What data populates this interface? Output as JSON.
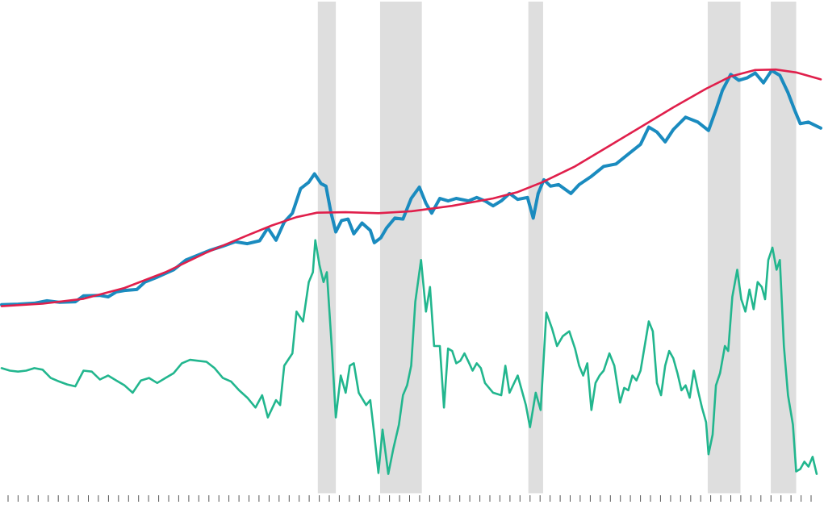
{
  "chart_data": {
    "type": "line",
    "title": "",
    "xlabel": "",
    "ylabel": "",
    "xlim": [
      0,
      100
    ],
    "ylim": [
      0,
      100
    ],
    "grid": false,
    "legend": "none",
    "x_tick_count": 81,
    "shaded_bands": [
      {
        "start": 38.6,
        "end": 40.8
      },
      {
        "start": 46.2,
        "end": 51.3
      },
      {
        "start": 64.3,
        "end": 66.1
      },
      {
        "start": 86.2,
        "end": 90.2
      },
      {
        "start": 93.9,
        "end": 97.0
      }
    ],
    "colors": {
      "band": "#dedede",
      "series_0": "#1a8bbf",
      "series_1": "#e01f4b",
      "series_2": "#22b68e",
      "axis": "#555555"
    },
    "series": [
      {
        "points": [
          [
            0,
            38.4
          ],
          [
            2,
            38.5
          ],
          [
            4,
            38.7
          ],
          [
            5.5,
            39.2
          ],
          [
            7,
            38.9
          ],
          [
            9,
            39.0
          ],
          [
            10,
            40.2
          ],
          [
            12,
            40.3
          ],
          [
            13,
            40.0
          ],
          [
            14,
            41.0
          ],
          [
            15,
            41.3
          ],
          [
            16.5,
            41.5
          ],
          [
            17.5,
            43.0
          ],
          [
            19,
            44.0
          ],
          [
            21,
            45.5
          ],
          [
            22.5,
            47.5
          ],
          [
            24,
            48.5
          ],
          [
            25.5,
            49.5
          ],
          [
            27,
            50.3
          ],
          [
            28.5,
            51.2
          ],
          [
            30,
            50.8
          ],
          [
            31.5,
            51.4
          ],
          [
            32.5,
            54.0
          ],
          [
            33.5,
            51.5
          ],
          [
            34.5,
            55.2
          ],
          [
            35.5,
            57.0
          ],
          [
            36.5,
            62.0
          ],
          [
            37.5,
            63.3
          ],
          [
            38.2,
            65.0
          ],
          [
            39,
            63.0
          ],
          [
            39.6,
            62.5
          ],
          [
            40.2,
            57.2
          ],
          [
            40.8,
            53.2
          ],
          [
            41.5,
            55.5
          ],
          [
            42.3,
            55.8
          ],
          [
            43,
            52.8
          ],
          [
            44,
            55.0
          ],
          [
            45,
            53.5
          ],
          [
            45.5,
            51.0
          ],
          [
            46.3,
            52.0
          ],
          [
            47,
            54.0
          ],
          [
            48,
            56.0
          ],
          [
            49,
            55.8
          ],
          [
            50,
            60.0
          ],
          [
            51,
            62.3
          ],
          [
            51.8,
            59.0
          ],
          [
            52.5,
            57.0
          ],
          [
            53.5,
            60.0
          ],
          [
            54.5,
            59.5
          ],
          [
            55.5,
            60.0
          ],
          [
            57,
            59.5
          ],
          [
            58,
            60.2
          ],
          [
            59,
            59.5
          ],
          [
            60,
            58.5
          ],
          [
            61,
            59.5
          ],
          [
            62,
            61.0
          ],
          [
            63,
            59.8
          ],
          [
            64.2,
            60.2
          ],
          [
            64.9,
            56.0
          ],
          [
            65.5,
            61.0
          ],
          [
            66.2,
            63.8
          ],
          [
            67,
            62.5
          ],
          [
            68,
            62.8
          ],
          [
            69.5,
            61.0
          ],
          [
            70.5,
            62.8
          ],
          [
            72,
            64.5
          ],
          [
            73.5,
            66.5
          ],
          [
            75,
            67.0
          ],
          [
            76.5,
            69.0
          ],
          [
            78,
            71.0
          ],
          [
            79,
            74.5
          ],
          [
            80,
            73.5
          ],
          [
            81,
            71.5
          ],
          [
            82,
            74.0
          ],
          [
            83.5,
            76.5
          ],
          [
            85,
            75.5
          ],
          [
            86.3,
            73.8
          ],
          [
            87.2,
            78.0
          ],
          [
            88,
            82.0
          ],
          [
            89,
            85.2
          ],
          [
            90,
            84.0
          ],
          [
            91,
            84.5
          ],
          [
            92,
            85.5
          ],
          [
            93,
            83.5
          ],
          [
            94,
            86.0
          ],
          [
            95,
            85.0
          ],
          [
            96,
            81.5
          ],
          [
            96.8,
            78.0
          ],
          [
            97.5,
            75.2
          ],
          [
            98.5,
            75.5
          ],
          [
            100,
            74.3
          ]
        ]
      },
      {
        "points": [
          [
            0,
            38.1
          ],
          [
            5,
            38.6
          ],
          [
            10,
            39.6
          ],
          [
            15,
            41.8
          ],
          [
            20,
            45.0
          ],
          [
            25,
            49.0
          ],
          [
            30,
            52.5
          ],
          [
            33,
            54.5
          ],
          [
            36,
            56.2
          ],
          [
            38.5,
            57.1
          ],
          [
            42,
            57.2
          ],
          [
            46,
            57.0
          ],
          [
            50,
            57.4
          ],
          [
            55,
            58.5
          ],
          [
            60,
            60.0
          ],
          [
            63,
            61.3
          ],
          [
            66,
            63.3
          ],
          [
            70,
            66.5
          ],
          [
            74,
            70.5
          ],
          [
            78,
            74.5
          ],
          [
            82,
            78.5
          ],
          [
            86,
            82.3
          ],
          [
            89,
            84.8
          ],
          [
            92,
            86.1
          ],
          [
            94.5,
            86.2
          ],
          [
            97,
            85.6
          ],
          [
            100,
            84.2
          ]
        ]
      },
      {
        "points": [
          [
            0,
            25.5
          ],
          [
            1,
            25.0
          ],
          [
            2,
            24.8
          ],
          [
            3,
            25.0
          ],
          [
            4,
            25.5
          ],
          [
            5,
            25.2
          ],
          [
            6,
            23.5
          ],
          [
            7,
            22.8
          ],
          [
            8,
            22.2
          ],
          [
            9,
            21.8
          ],
          [
            10,
            25.0
          ],
          [
            11,
            24.8
          ],
          [
            12,
            23.2
          ],
          [
            13,
            24.0
          ],
          [
            14,
            23.0
          ],
          [
            15,
            22.0
          ],
          [
            16,
            20.5
          ],
          [
            17,
            23.0
          ],
          [
            18,
            23.5
          ],
          [
            19,
            22.5
          ],
          [
            20,
            23.5
          ],
          [
            21,
            24.5
          ],
          [
            22,
            26.5
          ],
          [
            23,
            27.2
          ],
          [
            24,
            27.0
          ],
          [
            25,
            26.8
          ],
          [
            26,
            25.5
          ],
          [
            27,
            23.5
          ],
          [
            28,
            22.8
          ],
          [
            29,
            21.0
          ],
          [
            30,
            19.5
          ],
          [
            31,
            17.5
          ],
          [
            31.8,
            20.0
          ],
          [
            32.5,
            15.5
          ],
          [
            33.5,
            19.0
          ],
          [
            34,
            18.0
          ],
          [
            34.5,
            26.0
          ],
          [
            35.5,
            28.5
          ],
          [
            36,
            37.0
          ],
          [
            36.8,
            35.0
          ],
          [
            37.5,
            43.0
          ],
          [
            38,
            45.0
          ],
          [
            38.3,
            51.5
          ],
          [
            38.8,
            46.5
          ],
          [
            39.3,
            43.0
          ],
          [
            39.7,
            45.0
          ],
          [
            40.3,
            30.0
          ],
          [
            40.8,
            15.5
          ],
          [
            41.4,
            24.0
          ],
          [
            42,
            20.5
          ],
          [
            42.5,
            26.0
          ],
          [
            43,
            26.5
          ],
          [
            43.6,
            20.5
          ],
          [
            44.5,
            18.0
          ],
          [
            45,
            19.0
          ],
          [
            45.5,
            12.0
          ],
          [
            46,
            4.2
          ],
          [
            46.5,
            13.0
          ],
          [
            47.2,
            4.0
          ],
          [
            47.8,
            9.0
          ],
          [
            48.5,
            14.0
          ],
          [
            49,
            20.0
          ],
          [
            49.5,
            22.0
          ],
          [
            50,
            26.0
          ],
          [
            50.5,
            39.0
          ],
          [
            51.2,
            47.5
          ],
          [
            51.8,
            37.0
          ],
          [
            52.3,
            42.0
          ],
          [
            52.8,
            30.0
          ],
          [
            53.5,
            30.0
          ],
          [
            54,
            17.5
          ],
          [
            54.5,
            29.5
          ],
          [
            55,
            29.0
          ],
          [
            55.5,
            26.5
          ],
          [
            56,
            27.0
          ],
          [
            56.5,
            28.5
          ],
          [
            57,
            26.8
          ],
          [
            57.5,
            25.0
          ],
          [
            58,
            26.5
          ],
          [
            58.5,
            25.5
          ],
          [
            59,
            22.5
          ],
          [
            60,
            20.5
          ],
          [
            61,
            20.0
          ],
          [
            61.5,
            26.0
          ],
          [
            62,
            20.5
          ],
          [
            63,
            24.0
          ],
          [
            64,
            18.0
          ],
          [
            64.5,
            13.5
          ],
          [
            65.2,
            20.5
          ],
          [
            65.8,
            17.0
          ],
          [
            66.5,
            36.8
          ],
          [
            67.2,
            33.5
          ],
          [
            67.8,
            30.0
          ],
          [
            68.5,
            32.0
          ],
          [
            69.3,
            33.0
          ],
          [
            70,
            29.5
          ],
          [
            70.5,
            26.0
          ],
          [
            71,
            24.0
          ],
          [
            71.5,
            26.5
          ],
          [
            72,
            17.0
          ],
          [
            72.5,
            22.5
          ],
          [
            73,
            24.0
          ],
          [
            73.5,
            25.0
          ],
          [
            74.2,
            28.5
          ],
          [
            74.8,
            26.0
          ],
          [
            75.5,
            18.5
          ],
          [
            76,
            21.5
          ],
          [
            76.5,
            21.0
          ],
          [
            77,
            24.0
          ],
          [
            77.5,
            23.0
          ],
          [
            78,
            25.0
          ],
          [
            78.5,
            30.0
          ],
          [
            79,
            35.0
          ],
          [
            79.5,
            33.0
          ],
          [
            80,
            22.5
          ],
          [
            80.5,
            20.0
          ],
          [
            81,
            26.0
          ],
          [
            81.5,
            29.0
          ],
          [
            82,
            27.5
          ],
          [
            82.5,
            24.5
          ],
          [
            83,
            21.0
          ],
          [
            83.5,
            22.0
          ],
          [
            84,
            19.5
          ],
          [
            84.5,
            25.0
          ],
          [
            85,
            21.0
          ],
          [
            85.5,
            17.5
          ],
          [
            86,
            14.5
          ],
          [
            86.3,
            8.0
          ],
          [
            86.8,
            12.0
          ],
          [
            87.2,
            22.0
          ],
          [
            87.7,
            24.5
          ],
          [
            88.3,
            30.0
          ],
          [
            88.7,
            29.0
          ],
          [
            89.2,
            40.0
          ],
          [
            89.8,
            45.5
          ],
          [
            90.3,
            39.5
          ],
          [
            90.8,
            37.0
          ],
          [
            91.3,
            41.5
          ],
          [
            91.8,
            37.5
          ],
          [
            92.3,
            43.0
          ],
          [
            92.8,
            42.0
          ],
          [
            93.2,
            39.5
          ],
          [
            93.6,
            47.5
          ],
          [
            94.1,
            50.0
          ],
          [
            94.6,
            45.5
          ],
          [
            95,
            47.5
          ],
          [
            95.5,
            30.0
          ],
          [
            96,
            20.0
          ],
          [
            96.6,
            14.0
          ],
          [
            97,
            4.5
          ],
          [
            97.5,
            5.0
          ],
          [
            98,
            6.5
          ],
          [
            98.5,
            5.5
          ],
          [
            99,
            7.5
          ],
          [
            99.5,
            4.0
          ]
        ]
      }
    ]
  }
}
